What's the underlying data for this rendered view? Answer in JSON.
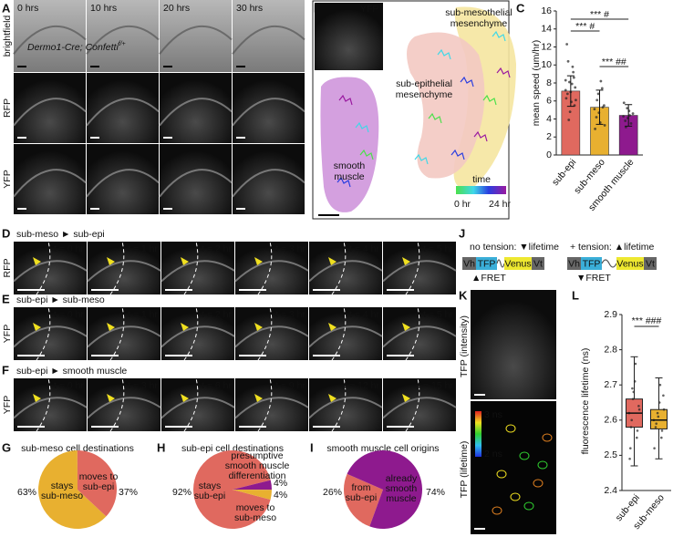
{
  "panels": {
    "A": {
      "letter": "A",
      "time_labels": [
        "0 hrs",
        "10 hrs",
        "20 hrs",
        "30 hrs"
      ],
      "row_labels": [
        "brightfield",
        "RFP",
        "YFP"
      ],
      "genotype": "Dermo1-Cre; Confetti",
      "genotype_sup": "f/+"
    },
    "B": {
      "letter": "B",
      "inset_label": "YFP",
      "regions": [
        [
          "sub-mesothelial",
          "mesenchyme"
        ],
        [
          "sub-epithelial",
          "mesenchyme"
        ],
        [
          "smooth",
          "muscle"
        ]
      ],
      "colorbar_title": "time",
      "colorbar_ticks": [
        "0 hr",
        "24 hr"
      ]
    },
    "C": {
      "letter": "C"
    },
    "D": {
      "letter": "D",
      "title": "sub-meso ► sub-epi",
      "row_label": "RFP",
      "times": [
        "t = 0 hr",
        "t = 1 hr",
        "t = 2 hr",
        "t = 3 hr",
        "t = 4 hr",
        "t = 5 hr"
      ]
    },
    "E": {
      "letter": "E",
      "title": "sub-epi ► sub-meso",
      "row_label": "YFP",
      "times": [
        "t = 0 hr",
        "t = 1 hr",
        "t = 2 hr",
        "t = 3 hr",
        "t = 4 hr",
        "t = 5 hr"
      ]
    },
    "F": {
      "letter": "F",
      "title": "sub-epi ► smooth muscle",
      "row_label": "YFP",
      "times": [
        "t = 0 hr",
        "t = 3 hr",
        "t = 6 hr",
        "t = 9 hr",
        "t = 12 hr",
        "t = 15 hr"
      ]
    },
    "G": {
      "letter": "G"
    },
    "H": {
      "letter": "H"
    },
    "I": {
      "letter": "I"
    },
    "J": {
      "letter": "J",
      "left": {
        "heading": "no tension: ▼lifetime",
        "fret": "▲FRET"
      },
      "right": {
        "heading": "+ tension: ▲lifetime",
        "fret": "▼FRET"
      },
      "construct": [
        "Vh",
        "TFP",
        "Venus",
        "Vt"
      ]
    },
    "K": {
      "letter": "K",
      "row_labels": [
        "TFP (intensity)",
        "TFP (lifetime)"
      ],
      "colorbar_ticks": [
        "3 ns",
        "2 ns"
      ]
    },
    "L": {
      "letter": "L"
    }
  },
  "chart_data": [
    {
      "type": "bar",
      "ylabel": "mean speed (um/hr)",
      "categories": [
        "sub-epi",
        "sub-meso",
        "smooth muscle"
      ],
      "values": [
        7.1,
        5.3,
        4.4
      ],
      "errors": [
        1.7,
        1.9,
        1.2
      ],
      "colors": [
        "#e0695f",
        "#e8b030",
        "#8e1a8e"
      ],
      "ylim": [
        0,
        16
      ],
      "yticks": [
        0,
        2,
        4,
        6,
        8,
        10,
        12,
        14,
        16
      ],
      "points": [
        [
          7.2,
          6.8,
          8.1,
          5.9,
          9.2,
          7.5,
          6.3,
          10.4,
          4.8,
          7.9,
          8.6,
          6.1,
          12.3,
          3.9,
          7.0,
          9.8,
          5.5,
          8.3
        ],
        [
          5.1,
          4.2,
          6.8,
          3.6,
          7.4,
          5.5,
          2.9,
          6.1,
          4.7,
          8.2,
          5.3,
          3.3
        ],
        [
          4.3,
          3.8,
          5.2,
          4.9,
          3.5,
          4.6,
          5.8,
          3.1,
          4.1,
          4.4
        ]
      ],
      "annotations": [
        "*** #",
        "*** #",
        "*** ##"
      ]
    },
    {
      "type": "pie",
      "title": "sub-meso cell destinations",
      "labels": [
        [
          "stays",
          "sub-meso"
        ],
        [
          "moves to",
          "sub-epi"
        ]
      ],
      "values": [
        63,
        37
      ],
      "value_labels": [
        "63%",
        "37%"
      ],
      "colors": [
        "#e8b030",
        "#e0695f"
      ]
    },
    {
      "type": "pie",
      "title": "sub-epi cell destinations",
      "labels": [
        [
          "stays",
          "sub-epi"
        ],
        [
          "presumptive",
          "smooth muscle",
          "differentiation"
        ],
        [
          "moves to",
          "sub-meso"
        ]
      ],
      "values": [
        92,
        4,
        4
      ],
      "value_labels": [
        "92%",
        "4%",
        "4%"
      ],
      "colors": [
        "#e0695f",
        "#8e1a8e",
        "#e8b030"
      ]
    },
    {
      "type": "pie",
      "title": "smooth muscle cell origins",
      "labels": [
        [
          "from",
          "sub-epi"
        ],
        [
          "already",
          "smooth",
          "muscle"
        ]
      ],
      "values": [
        26,
        74
      ],
      "value_labels": [
        "26%",
        "74%"
      ],
      "colors": [
        "#e0695f",
        "#8e1a8e"
      ]
    },
    {
      "type": "box",
      "ylabel": "fluorescence lifetime (ns)",
      "categories": [
        "sub-epi",
        "sub-meso"
      ],
      "colors": [
        "#e0695f",
        "#e8b030"
      ],
      "ylim": [
        2.4,
        2.9
      ],
      "yticks": [
        2.4,
        2.5,
        2.6,
        2.7,
        2.8,
        2.9
      ],
      "boxes": [
        {
          "min": 2.47,
          "q1": 2.58,
          "median": 2.62,
          "q3": 2.66,
          "max": 2.78
        },
        {
          "min": 2.49,
          "q1": 2.575,
          "median": 2.6,
          "q3": 2.63,
          "max": 2.72
        }
      ],
      "points": [
        [
          2.62,
          2.58,
          2.66,
          2.71,
          2.55,
          2.64,
          2.49,
          2.6,
          2.68,
          2.76,
          2.57,
          2.63,
          2.52,
          2.69
        ],
        [
          2.6,
          2.58,
          2.62,
          2.65,
          2.55,
          2.67,
          2.52,
          2.59,
          2.61,
          2.7,
          2.57,
          2.63
        ]
      ],
      "annotation": "*** ###"
    }
  ]
}
